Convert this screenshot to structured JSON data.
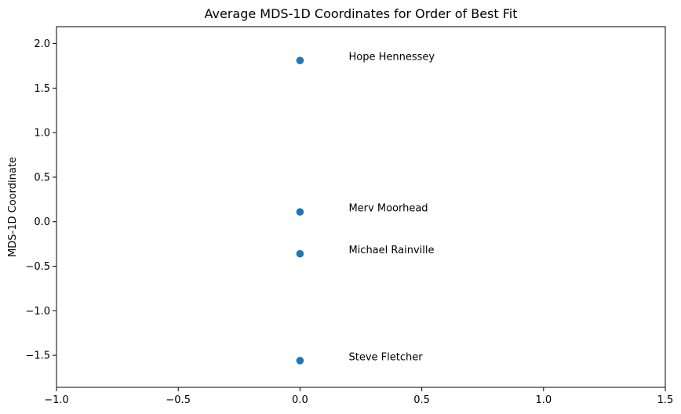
{
  "chart_data": {
    "type": "scatter",
    "title": "Average MDS-1D Coordinates for Order of Best Fit",
    "xlabel": "",
    "ylabel": "MDS-1D Coordinate",
    "xlim": [
      -1.0,
      1.5
    ],
    "ylim": [
      -1.86,
      2.19
    ],
    "xticks": [
      -1.0,
      -0.5,
      0.0,
      0.5,
      1.0,
      1.5
    ],
    "xtick_labels": [
      "−1.0",
      "−0.5",
      "0.0",
      "0.5",
      "1.0",
      "1.5"
    ],
    "yticks": [
      -1.5,
      -1.0,
      -0.5,
      0.0,
      0.5,
      1.0,
      1.5,
      2.0
    ],
    "ytick_labels": [
      "−1.5",
      "−1.0",
      "−0.5",
      "0.0",
      "0.5",
      "1.0",
      "1.5",
      "2.0"
    ],
    "grid": false,
    "marker_color": "#1f77b4",
    "points": [
      {
        "label": "Hope Hennessey",
        "x": 0.0,
        "y": 1.81
      },
      {
        "label": "Merv Moorhead",
        "x": 0.0,
        "y": 0.11
      },
      {
        "label": "Michael Rainville",
        "x": 0.0,
        "y": -0.36
      },
      {
        "label": "Steve Fletcher",
        "x": 0.0,
        "y": -1.56
      }
    ],
    "annotation_x": 0.2
  }
}
